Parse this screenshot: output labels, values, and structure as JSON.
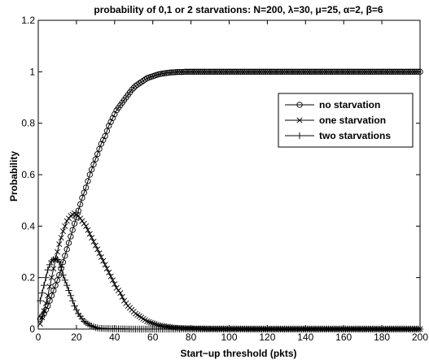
{
  "chart_data": {
    "type": "line",
    "title": "probability of 0,1 or 2 starvations: N=200, λ=30, μ=25, α=2, β=6",
    "xlabel": "Start−up threshold (pkts)",
    "ylabel": "Probability",
    "xlim": [
      0,
      200
    ],
    "ylim": [
      0,
      1.2
    ],
    "x_ticks": [
      0,
      20,
      40,
      60,
      80,
      100,
      120,
      140,
      160,
      180,
      200
    ],
    "x_tick_labels": [
      "0",
      "20",
      "40",
      "60",
      "80",
      "100",
      "120",
      "140",
      "160",
      "180",
      "200"
    ],
    "y_ticks": [
      0,
      0.2,
      0.4,
      0.6,
      0.8,
      1,
      1.2
    ],
    "y_tick_labels": [
      "0",
      "0.2",
      "0.4",
      "0.6",
      "0.8",
      "1",
      "1.2"
    ],
    "grid": false,
    "legend_position": "right, upper-middle",
    "series": [
      {
        "name": "no starvation",
        "marker": "circle",
        "color": "#000000",
        "x": [
          1,
          3,
          5,
          7,
          9,
          11,
          13,
          15,
          17,
          19,
          21,
          23,
          25,
          27,
          29,
          31,
          33,
          35,
          37,
          39,
          41,
          43,
          45,
          47,
          49,
          51,
          53,
          55,
          57,
          59,
          61,
          63,
          65,
          67,
          69,
          71,
          73,
          75,
          77,
          79,
          81,
          85,
          90,
          100,
          120,
          140,
          160,
          180,
          200
        ],
        "y": [
          0.04,
          0.06,
          0.09,
          0.13,
          0.17,
          0.21,
          0.26,
          0.31,
          0.36,
          0.41,
          0.46,
          0.51,
          0.55,
          0.6,
          0.64,
          0.68,
          0.72,
          0.75,
          0.79,
          0.82,
          0.85,
          0.87,
          0.89,
          0.91,
          0.93,
          0.945,
          0.955,
          0.965,
          0.975,
          0.98,
          0.985,
          0.99,
          0.993,
          0.995,
          0.997,
          0.998,
          0.999,
          0.999,
          1.0,
          1.0,
          1.0,
          1.0,
          1.0,
          1.0,
          1.0,
          1.0,
          1.0,
          1.0,
          1.0
        ]
      },
      {
        "name": "one starvation",
        "marker": "x",
        "color": "#000000",
        "x": [
          1,
          3,
          5,
          7,
          9,
          11,
          13,
          15,
          17,
          19,
          21,
          23,
          25,
          27,
          29,
          31,
          33,
          35,
          37,
          39,
          41,
          43,
          45,
          47,
          49,
          51,
          53,
          55,
          57,
          59,
          61,
          63,
          65,
          67,
          69,
          71,
          73,
          75,
          80,
          85,
          90,
          100,
          120,
          140,
          160,
          180,
          200
        ],
        "y": [
          0.02,
          0.07,
          0.13,
          0.2,
          0.27,
          0.33,
          0.38,
          0.42,
          0.44,
          0.45,
          0.44,
          0.42,
          0.4,
          0.37,
          0.34,
          0.31,
          0.28,
          0.25,
          0.22,
          0.19,
          0.16,
          0.14,
          0.11,
          0.09,
          0.075,
          0.06,
          0.05,
          0.04,
          0.03,
          0.025,
          0.02,
          0.015,
          0.012,
          0.01,
          0.008,
          0.006,
          0.005,
          0.004,
          0.003,
          0.002,
          0.001,
          0.0005,
          0,
          0,
          0,
          0,
          0
        ]
      },
      {
        "name": "two starvations",
        "marker": "plus",
        "color": "#000000",
        "x": [
          1,
          2,
          3,
          4,
          5,
          6,
          7,
          8,
          9,
          10,
          11,
          12,
          13,
          14,
          15,
          16,
          17,
          18,
          19,
          20,
          21,
          22,
          23,
          24,
          25,
          26,
          27,
          28,
          29,
          30,
          32,
          35,
          40,
          50,
          70,
          100,
          140,
          200
        ],
        "y": [
          0.11,
          0.14,
          0.17,
          0.2,
          0.23,
          0.25,
          0.265,
          0.27,
          0.275,
          0.27,
          0.26,
          0.24,
          0.21,
          0.19,
          0.17,
          0.15,
          0.13,
          0.11,
          0.09,
          0.075,
          0.06,
          0.05,
          0.04,
          0.03,
          0.025,
          0.02,
          0.015,
          0.012,
          0.009,
          0.006,
          0.003,
          0.002,
          0.001,
          0,
          0,
          0,
          0,
          0
        ]
      }
    ]
  }
}
